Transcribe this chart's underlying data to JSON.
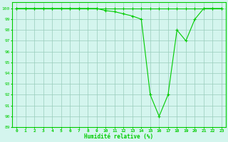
{
  "x": [
    0,
    1,
    2,
    3,
    4,
    5,
    6,
    7,
    8,
    9,
    10,
    11,
    12,
    13,
    14,
    15,
    16,
    17,
    18,
    19,
    20,
    21,
    22,
    23
  ],
  "y_flat": [
    100,
    100,
    100,
    100,
    100,
    100,
    100,
    100,
    100,
    100,
    100,
    100,
    100,
    100,
    100,
    100,
    100,
    100,
    100,
    100,
    100,
    100,
    100,
    100
  ],
  "y_main": [
    100,
    100,
    100,
    100,
    100,
    100,
    100,
    100,
    100,
    100,
    99.8,
    99.7,
    99.5,
    99.3,
    99.0,
    92,
    90,
    92,
    98,
    97,
    99,
    100,
    100,
    100
  ],
  "line_color": "#00cc00",
  "bg_color": "#d4f5ee",
  "grid_color": "#99ccbb",
  "xlabel": "Humidité relative (%)",
  "ylim": [
    89,
    100.6
  ],
  "xlim": [
    -0.5,
    23.5
  ],
  "yticks": [
    89,
    90,
    91,
    92,
    93,
    94,
    95,
    96,
    97,
    98,
    99,
    100
  ],
  "xticks": [
    0,
    1,
    2,
    3,
    4,
    5,
    6,
    7,
    8,
    9,
    10,
    11,
    12,
    13,
    14,
    15,
    16,
    17,
    18,
    19,
    20,
    21,
    22,
    23
  ]
}
